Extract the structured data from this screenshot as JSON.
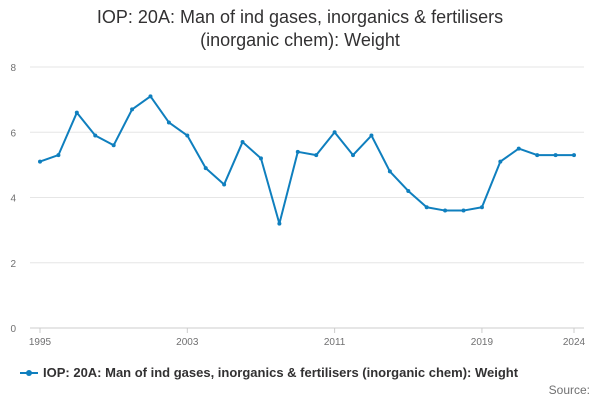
{
  "title_lines": [
    "IOP: 20A: Man of ind gases, inorganics & fertilisers",
    "(inorganic chem): Weight"
  ],
  "source_label": "Source:",
  "colors": {
    "series": "#0f7fbe",
    "grid": "#e6e6e6",
    "axis": "#cccccc",
    "text": "#323132",
    "muted": "#707071"
  },
  "chart_data": {
    "type": "line",
    "title": "IOP: 20A: Man of ind gases, inorganics & fertilisers (inorganic chem): Weight",
    "x": [
      1995,
      1996,
      1997,
      1998,
      1999,
      2000,
      2001,
      2002,
      2003,
      2004,
      2005,
      2006,
      2007,
      2008,
      2009,
      2010,
      2011,
      2012,
      2013,
      2014,
      2015,
      2016,
      2017,
      2018,
      2019,
      2020,
      2021,
      2022,
      2023,
      2024
    ],
    "series": [
      {
        "name": "IOP: 20A: Man of ind gases, inorganics & fertilisers (inorganic chem): Weight",
        "values": [
          5.1,
          5.3,
          6.6,
          5.9,
          5.6,
          6.7,
          7.1,
          6.3,
          5.9,
          4.9,
          4.4,
          5.7,
          5.2,
          3.2,
          5.4,
          5.3,
          6.0,
          5.3,
          5.9,
          4.8,
          4.2,
          3.7,
          3.6,
          3.6,
          3.7,
          5.1,
          5.5,
          5.3,
          5.3,
          5.3
        ]
      }
    ],
    "xticks": [
      "1995",
      "2003",
      "2011",
      "2019",
      "2024"
    ],
    "yticks": [
      "0",
      "2",
      "4",
      "6",
      "8"
    ],
    "ylim": [
      0,
      8
    ],
    "grid": true,
    "legend": "bottom"
  }
}
